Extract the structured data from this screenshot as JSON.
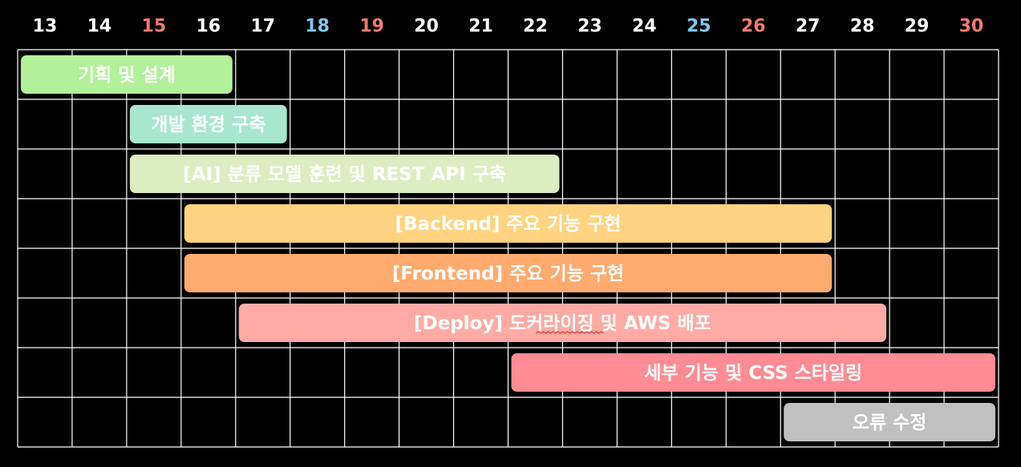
{
  "chart_data": {
    "type": "gantt",
    "days": [
      {
        "label": "13",
        "kind": "weekday"
      },
      {
        "label": "14",
        "kind": "weekday"
      },
      {
        "label": "15",
        "kind": "holiday"
      },
      {
        "label": "16",
        "kind": "weekday"
      },
      {
        "label": "17",
        "kind": "weekday"
      },
      {
        "label": "18",
        "kind": "saturday"
      },
      {
        "label": "19",
        "kind": "holiday"
      },
      {
        "label": "20",
        "kind": "weekday"
      },
      {
        "label": "21",
        "kind": "weekday"
      },
      {
        "label": "22",
        "kind": "weekday"
      },
      {
        "label": "23",
        "kind": "weekday"
      },
      {
        "label": "24",
        "kind": "weekday"
      },
      {
        "label": "25",
        "kind": "saturday"
      },
      {
        "label": "26",
        "kind": "holiday"
      },
      {
        "label": "27",
        "kind": "weekday"
      },
      {
        "label": "28",
        "kind": "weekday"
      },
      {
        "label": "29",
        "kind": "weekday"
      },
      {
        "label": "30",
        "kind": "holiday"
      }
    ],
    "tasks": [
      {
        "label": "기획 및 설계",
        "start_day": 13,
        "end_day": 16,
        "color": "#b2f09a"
      },
      {
        "label": "개발 환경 구축",
        "start_day": 15,
        "end_day": 17,
        "color": "#a8e6cf"
      },
      {
        "label": "[AI] 분류 모델 훈련 및 REST API 구축",
        "start_day": 15,
        "end_day": 22,
        "color": "#dcedc1"
      },
      {
        "label": "[Backend] 주요 기능 구현",
        "start_day": 16,
        "end_day": 27,
        "color": "#ffd382"
      },
      {
        "label": "[Frontend] 주요 기능 구현",
        "start_day": 16,
        "end_day": 27,
        "color": "#ffaa6e"
      },
      {
        "label": "[Deploy] 도커라이징 및 AWS 배포",
        "start_day": 17,
        "end_day": 28,
        "color": "#ffaaa5"
      },
      {
        "label": "세부 기능 및 CSS 스타일링",
        "start_day": 22,
        "end_day": 30,
        "color": "#ff8b94"
      },
      {
        "label": "오류 수정",
        "start_day": 27,
        "end_day": 30,
        "color": "#c0c0c0"
      }
    ]
  },
  "colors": {
    "background": "#000000",
    "grid": "#ffffff",
    "weekday_text": "#ffffff",
    "saturday_text": "#7ec8f0",
    "holiday_text": "#f07a70"
  }
}
